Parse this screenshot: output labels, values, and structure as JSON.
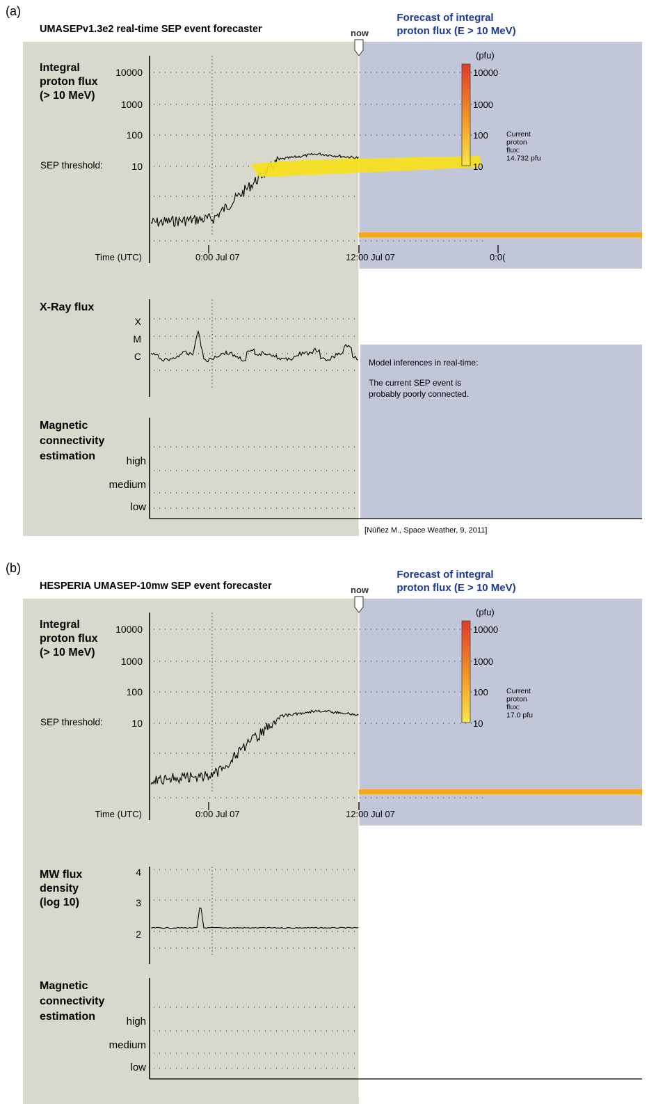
{
  "panels": [
    {
      "tag": "(a)",
      "title": "UMASEPv1.3e2 real-time SEP event forecaster",
      "now_label": "now",
      "forecast_title": [
        "Forecast of integral",
        "proton flux (E > 10 MeV)"
      ],
      "proton": {
        "label": [
          "Integral",
          "proton flux",
          "(> 10 MeV)"
        ],
        "ticks": [
          "10000",
          "1000",
          "100",
          "10"
        ],
        "threshold_label": "SEP threshold:",
        "time_axis_label": "Time (UTC)",
        "time_ticks": [
          "0:00  Jul 07",
          "12:00 Jul 07",
          "0:0("
        ],
        "scale_unit": "(pfu)",
        "scale_ticks": [
          "10000",
          "1000",
          "100",
          "10"
        ],
        "current_flux": [
          "Current",
          "proton",
          "flux:",
          "14.732 pfu"
        ],
        "forecast_current_pfu": 14.732,
        "colors": {
          "panel_bg": "#d9d8cc",
          "forecast_bg": "#c1c7d8",
          "forecast_band": "#f7e11b",
          "orange_bar": "#f4a81a",
          "scale_top": "#e0392a",
          "scale_bottom": "#f7e84a"
        }
      },
      "second": {
        "label": [
          "X-Ray flux"
        ],
        "ticks": [
          "X",
          "M",
          "C"
        ]
      },
      "inference": {
        "heading": "Model inferences in real-time:",
        "text": [
          "The current SEP event is",
          "probably poorly connected."
        ]
      },
      "magnetic": {
        "label": [
          "Magnetic",
          "connectivity",
          "estimation"
        ],
        "ticks": [
          "high",
          "medium",
          "low"
        ]
      },
      "citation": "[Núñez M., Space Weather, 9, 2011]"
    },
    {
      "tag": "(b)",
      "title": "HESPERIA UMASEP-10mw SEP event forecaster",
      "now_label": "now",
      "forecast_title": [
        "Forecast of integral",
        "proton flux (E > 10 MeV)"
      ],
      "proton": {
        "label": [
          "Integral",
          "proton flux",
          "(> 10 MeV)"
        ],
        "ticks": [
          "10000",
          "1000",
          "100",
          "10"
        ],
        "threshold_label": "SEP threshold:",
        "time_axis_label": "Time (UTC)",
        "time_ticks": [
          "0:00  Jul 07",
          "12:00 Jul 07"
        ],
        "scale_unit": "(pfu)",
        "scale_ticks": [
          "10000",
          "1000",
          "100",
          "10"
        ],
        "current_flux": [
          "Current",
          "proton",
          "flux:",
          "17.0 pfu"
        ],
        "forecast_current_pfu": 17.0
      },
      "second": {
        "label": [
          "MW flux",
          "density",
          "(log 10)"
        ],
        "ticks": [
          "4",
          "3",
          "2"
        ]
      },
      "magnetic": {
        "label": [
          "Magnetic",
          "connectivity",
          "estimation"
        ],
        "ticks": [
          "high",
          "medium",
          "low"
        ]
      }
    }
  ]
}
